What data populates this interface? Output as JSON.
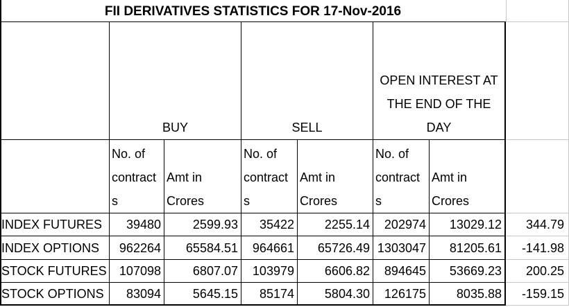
{
  "title": "FII DERIVATIVES STATISTICS FOR 17-Nov-2016",
  "colors": {
    "border_dark": "#000000",
    "gridline_gray": "#c6c6c6",
    "background": "#ffffff",
    "text": "#000000"
  },
  "header": {
    "buy": "BUY",
    "sell": "SELL",
    "open_interest": "OPEN INTEREST AT\nTHE END OF THE\nDAY",
    "no_of_contracts": "No. of\ncontract\ns",
    "amt_in_crores": "Amt in\nCrores"
  },
  "rows": [
    {
      "label": "INDEX FUTURES",
      "buy_contracts": "39480",
      "buy_amt": "2599.93",
      "sell_contracts": "35422",
      "sell_amt": "2255.14",
      "oi_contracts": "202974",
      "oi_amt": "13029.12",
      "net": "344.79"
    },
    {
      "label": "INDEX OPTIONS",
      "buy_contracts": "962264",
      "buy_amt": "65584.51",
      "sell_contracts": "964661",
      "sell_amt": "65726.49",
      "oi_contracts": "1303047",
      "oi_amt": "81205.61",
      "net": "-141.98"
    },
    {
      "label": "STOCK FUTURES",
      "buy_contracts": "107098",
      "buy_amt": "6807.07",
      "sell_contracts": "103979",
      "sell_amt": "6606.82",
      "oi_contracts": "894645",
      "oi_amt": "53669.23",
      "net": "200.25"
    },
    {
      "label": "STOCK OPTIONS",
      "buy_contracts": "83094",
      "buy_amt": "5645.15",
      "sell_contracts": "85174",
      "sell_amt": "5804.30",
      "oi_contracts": "126175",
      "oi_amt": "8035.88",
      "net": "-159.15"
    }
  ]
}
